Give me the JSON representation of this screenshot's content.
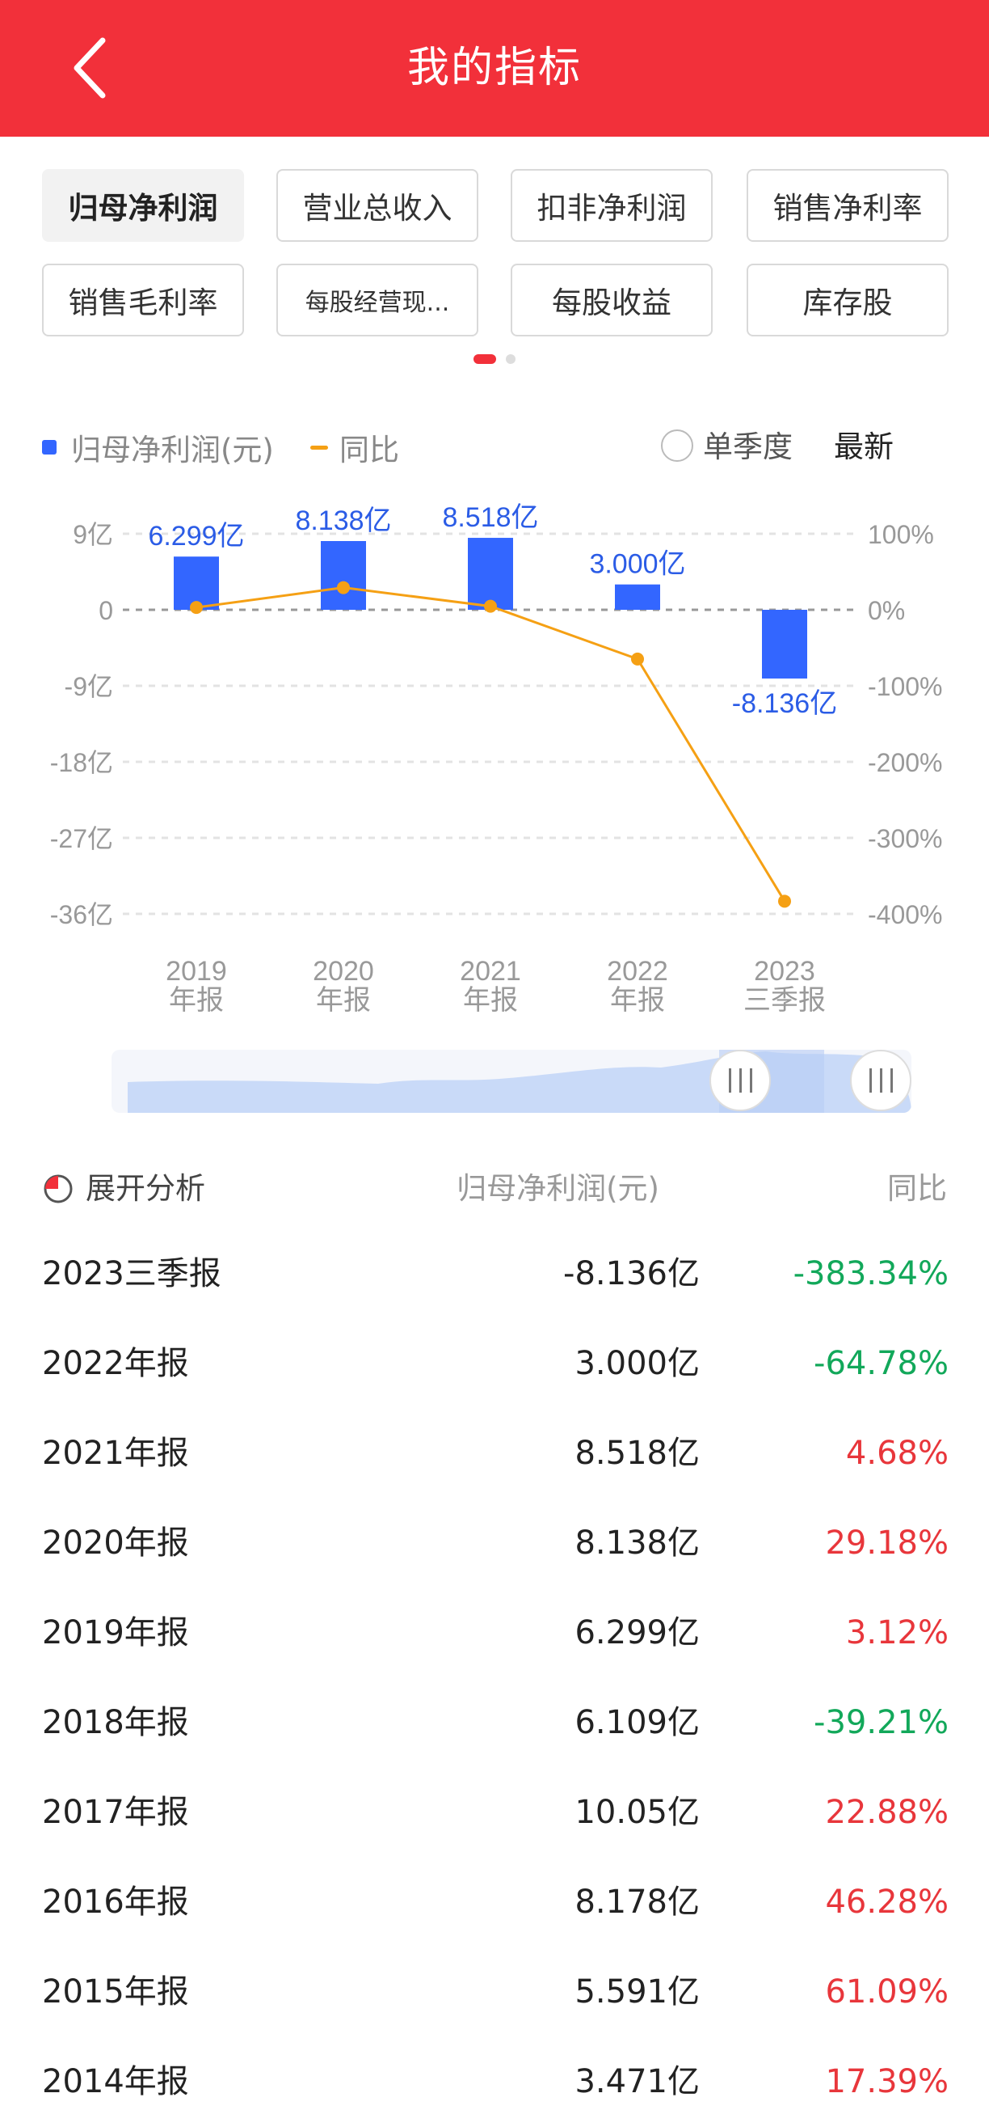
{
  "header": {
    "title": "我的指标"
  },
  "tabs": [
    {
      "label": "归母净利润",
      "active": true
    },
    {
      "label": "营业总收入",
      "active": false
    },
    {
      "label": "扣非净利润",
      "active": false
    },
    {
      "label": "销售净利率",
      "active": false
    },
    {
      "label": "销售毛利率",
      "active": false
    },
    {
      "label": "每股经营现...",
      "active": false
    },
    {
      "label": "每股收益",
      "active": false
    },
    {
      "label": "库存股",
      "active": false
    }
  ],
  "legend": {
    "bar_label": "归母净利润(元)",
    "line_label": "同比",
    "single_quarter_label": "单季度",
    "latest_label": "最新"
  },
  "colors": {
    "header": "#f2303a",
    "bar": "#3366ff",
    "line": "#f5a014",
    "up": "#e8363b",
    "down": "#12a85a"
  },
  "chart_data": {
    "type": "bar",
    "categories": [
      "2019\n年报",
      "2020\n年报",
      "2021\n年报",
      "2022\n年报",
      "2023\n三季报"
    ],
    "series": [
      {
        "name": "归母净利润(元)",
        "type": "bar",
        "values": [
          6.299,
          8.138,
          8.518,
          3.0,
          -8.136
        ],
        "labels": [
          "6.299亿",
          "8.138亿",
          "8.518亿",
          "3.000亿",
          "-8.136亿"
        ]
      },
      {
        "name": "同比",
        "type": "line",
        "values": [
          3.12,
          29.18,
          4.68,
          -64.78,
          -383.34
        ]
      }
    ],
    "y_left": {
      "ticks": [
        9,
        0,
        -9,
        -18,
        -27,
        -36
      ],
      "tick_labels": [
        "9亿",
        "0",
        "-9亿",
        "-18亿",
        "-27亿",
        "-36亿"
      ],
      "ylim": [
        -36,
        9
      ]
    },
    "y_right": {
      "ticks": [
        100,
        0,
        -100,
        -200,
        -300,
        -400
      ],
      "tick_labels": [
        "100%",
        "0%",
        "-100%",
        "-200%",
        "-300%",
        "-400%"
      ],
      "ylim": [
        -400,
        100
      ]
    },
    "grid": true
  },
  "table": {
    "head": {
      "analysis": "展开分析",
      "col_value": "归母净利润(元)",
      "col_yoy": "同比"
    },
    "rows": [
      {
        "period": "2023三季报",
        "value": "-8.136亿",
        "yoy": "-383.34%",
        "dir": "down"
      },
      {
        "period": "2022年报",
        "value": "3.000亿",
        "yoy": "-64.78%",
        "dir": "down"
      },
      {
        "period": "2021年报",
        "value": "8.518亿",
        "yoy": "4.68%",
        "dir": "up"
      },
      {
        "period": "2020年报",
        "value": "8.138亿",
        "yoy": "29.18%",
        "dir": "up"
      },
      {
        "period": "2019年报",
        "value": "6.299亿",
        "yoy": "3.12%",
        "dir": "up"
      },
      {
        "period": "2018年报",
        "value": "6.109亿",
        "yoy": "-39.21%",
        "dir": "down"
      },
      {
        "period": "2017年报",
        "value": "10.05亿",
        "yoy": "22.88%",
        "dir": "up"
      },
      {
        "period": "2016年报",
        "value": "8.178亿",
        "yoy": "46.28%",
        "dir": "up"
      },
      {
        "period": "2015年报",
        "value": "5.591亿",
        "yoy": "61.09%",
        "dir": "up"
      },
      {
        "period": "2014年报",
        "value": "3.471亿",
        "yoy": "17.39%",
        "dir": "up"
      }
    ]
  }
}
